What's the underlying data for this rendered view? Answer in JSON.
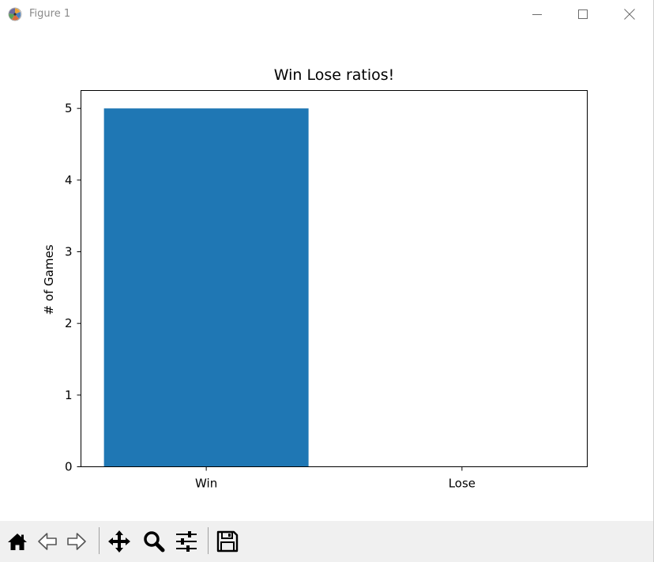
{
  "window": {
    "title": "Figure 1"
  },
  "icons": {
    "app": "matplotlib-logo-icon",
    "minimize": "minimize-icon",
    "maximize": "maximize-icon",
    "close": "close-icon"
  },
  "toolbar": {
    "tools": [
      {
        "name": "home",
        "icon": "home-icon"
      },
      {
        "name": "back",
        "icon": "back-arrow-icon"
      },
      {
        "name": "forward",
        "icon": "forward-arrow-icon"
      },
      {
        "name": "pan",
        "icon": "pan-move-icon"
      },
      {
        "name": "zoom",
        "icon": "zoom-magnifier-icon"
      },
      {
        "name": "configure-subplots",
        "icon": "sliders-icon"
      },
      {
        "name": "save",
        "icon": "save-floppy-icon"
      }
    ]
  },
  "chart_data": {
    "type": "bar",
    "title": "Win Lose ratios!",
    "xlabel": "",
    "ylabel": "# of Games",
    "categories": [
      "Win",
      "Lose"
    ],
    "values": [
      5,
      0
    ],
    "ylim": [
      0,
      5.25
    ],
    "yticks": [
      0,
      1,
      2,
      3,
      4,
      5
    ],
    "bar_color": "#1f77b4",
    "grid": false,
    "legend": "none"
  }
}
